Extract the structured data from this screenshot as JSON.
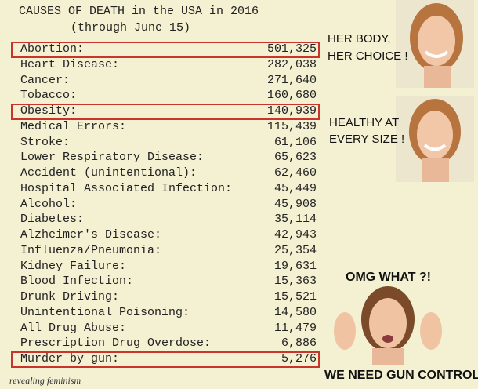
{
  "header": {
    "title": "CAUSES OF DEATH in the USA in 2016",
    "subtitle": "(through June 15)"
  },
  "rows": [
    {
      "label": "Abortion:",
      "value": "501,325",
      "boxed": true
    },
    {
      "label": "Heart Disease:",
      "value": "282,038"
    },
    {
      "label": "Cancer:",
      "value": "271,640"
    },
    {
      "label": "Tobacco:",
      "value": "160,680"
    },
    {
      "label": "Obesity:",
      "value": "140,939",
      "boxed": true
    },
    {
      "label": "Medical Errors:",
      "value": "115,439"
    },
    {
      "label": "Stroke:",
      "value": "61,106"
    },
    {
      "label": "Lower Respiratory Disease:",
      "value": "65,623"
    },
    {
      "label": "Accident (unintentional):",
      "value": "62,460"
    },
    {
      "label": "Hospital Associated Infection:",
      "value": "45,449"
    },
    {
      "label": "Alcohol:",
      "value": "45,908"
    },
    {
      "label": "Diabetes:",
      "value": "35,114"
    },
    {
      "label": "Alzheimer's Disease:",
      "value": "42,943"
    },
    {
      "label": "Influenza/Pneumonia:",
      "value": "25,354"
    },
    {
      "label": "Kidney Failure:",
      "value": "19,631"
    },
    {
      "label": "Blood Infection:",
      "value": "15,363"
    },
    {
      "label": "Drunk Driving:",
      "value": "15,521"
    },
    {
      "label": "Unintentional Poisoning:",
      "value": "14,580"
    },
    {
      "label": "All Drug Abuse:",
      "value": "11,479"
    },
    {
      "label": "Prescription Drug Overdose:",
      "value": "6,886"
    },
    {
      "label": "Murder by gun:",
      "value": "5,276",
      "boxed": true
    }
  ],
  "captions": [
    "HER BODY,",
    "HER CHOICE !",
    "HEALTHY AT",
    "EVERY SIZE !",
    "OMG WHAT ?!",
    "WE NEED GUN CONTROL !"
  ],
  "watermark": "revealing feminism"
}
